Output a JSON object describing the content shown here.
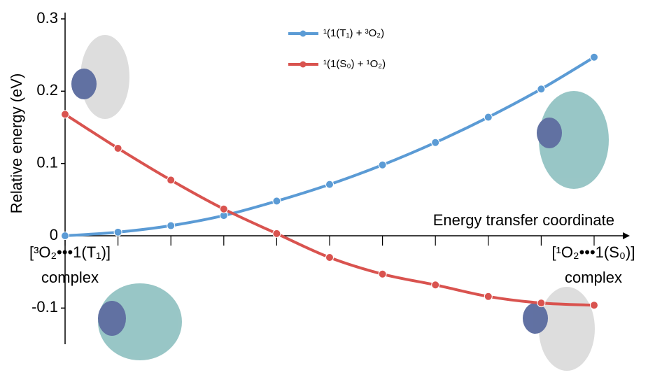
{
  "chart_data": {
    "type": "line",
    "y_label": "Relative energy (eV)",
    "x_label": "Energy transfer coordinate",
    "start_label": [
      "[³O₂•••1(T₁)]",
      "complex"
    ],
    "end_label": [
      "[¹O₂•••1(S₀)]",
      "complex"
    ],
    "categories": [
      null,
      null,
      null,
      null,
      null,
      null,
      null,
      null,
      null,
      null,
      null
    ],
    "series": [
      {
        "name": "¹(1(T₁) + ³O₂)",
        "color": "#5b9bd5",
        "values": [
          0,
          0.005,
          0.014,
          0.028,
          0.048,
          0.071,
          0.098,
          0.129,
          0.164,
          0.203,
          0.247
        ]
      },
      {
        "name": "¹(1(S₀) + ¹O₂)",
        "color": "#d9534f",
        "values": [
          0.168,
          0.121,
          0.077,
          0.037,
          0.003,
          -0.03,
          -0.053,
          -0.068,
          -0.084,
          -0.093,
          -0.096
        ]
      }
    ],
    "ylim": [
      -0.15,
      0.3
    ],
    "yticks": [
      -0.1,
      0,
      0.1,
      0.2,
      0.3
    ]
  }
}
